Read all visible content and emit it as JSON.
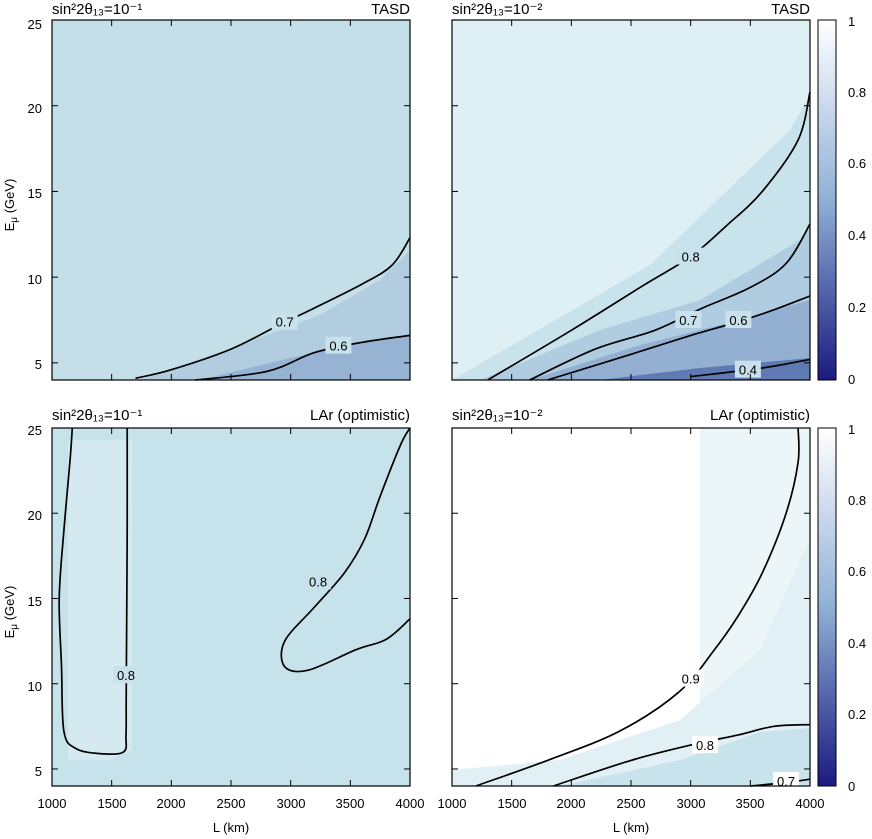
{
  "figure": {
    "x_label": "L (km)",
    "y_label_main": "E",
    "y_label_sub": "μ",
    "y_label_unit": " (GeV)",
    "x_ticks": [
      "1000",
      "1500",
      "2000",
      "2500",
      "3000",
      "3500",
      "4000"
    ],
    "y_ticks": [
      "5",
      "10",
      "15",
      "20",
      "25"
    ],
    "colorbar_ticks": [
      "0",
      "0.2",
      "0.4",
      "0.6",
      "0.8",
      "1"
    ],
    "colors": {
      "low": "#1a1a80",
      "mid": "#8fb0d6",
      "high": "#ffffff",
      "base_tasd": "#c4dfe8"
    }
  },
  "chart_data": [
    {
      "type": "heatmap",
      "panel": "top-left",
      "title_left": "sin²2θ₁₃=10⁻¹",
      "title_right": "TASD",
      "xlim": [
        1000,
        4000
      ],
      "ylim": [
        4,
        25
      ],
      "colorbar_range": [
        0,
        1
      ],
      "contours": [
        {
          "level": "0.7",
          "points": [
            [
              1700,
              4.1
            ],
            [
              2000,
              4.6
            ],
            [
              2500,
              5.8
            ],
            [
              2900,
              7.2
            ],
            [
              3200,
              8.2
            ],
            [
              3600,
              9.6
            ],
            [
              3850,
              10.7
            ],
            [
              4000,
              12.3
            ]
          ],
          "label_at": [
            2950,
            7.4
          ]
        },
        {
          "level": "0.6",
          "points": [
            [
              2200,
              4.0
            ],
            [
              2800,
              4.5
            ],
            [
              3200,
              5.6
            ],
            [
              3600,
              6.2
            ],
            [
              4000,
              6.6
            ]
          ],
          "label_at": [
            3400,
            6.0
          ]
        }
      ]
    },
    {
      "type": "heatmap",
      "panel": "top-right",
      "title_left": "sin²2θ₁₃=10⁻²",
      "title_right": "TASD",
      "xlim": [
        1000,
        4000
      ],
      "ylim": [
        4,
        25
      ],
      "colorbar_range": [
        0,
        1
      ],
      "contours": [
        {
          "level": "0.8",
          "points": [
            [
              1300,
              4.0
            ],
            [
              2000,
              6.9
            ],
            [
              2600,
              9.5
            ],
            [
              3000,
              11.2
            ],
            [
              3300,
              13.0
            ],
            [
              3600,
              15.0
            ],
            [
              3900,
              18.0
            ],
            [
              4000,
              20.8
            ]
          ],
          "label_at": [
            3000,
            11.2
          ]
        },
        {
          "level": "0.7",
          "points": [
            [
              1650,
              4.0
            ],
            [
              2200,
              5.8
            ],
            [
              2700,
              6.9
            ],
            [
              3100,
              8.2
            ],
            [
              3500,
              9.4
            ],
            [
              3800,
              10.8
            ],
            [
              4000,
              13.1
            ]
          ],
          "label_at": [
            2980,
            7.5
          ]
        },
        {
          "level": "0.6",
          "points": [
            [
              1800,
              4.0
            ],
            [
              2500,
              5.5
            ],
            [
              3000,
              6.6
            ],
            [
              3400,
              7.4
            ],
            [
              3700,
              8.1
            ],
            [
              4000,
              8.9
            ]
          ],
          "label_at": [
            3400,
            7.5
          ]
        },
        {
          "level": "0.4",
          "points": [
            [
              3000,
              4.2
            ],
            [
              3600,
              4.7
            ],
            [
              4000,
              5.2
            ]
          ],
          "label_at": [
            3480,
            4.6
          ]
        }
      ]
    },
    {
      "type": "heatmap",
      "panel": "bottom-left",
      "title_left": "sin²2θ₁₃=10⁻¹",
      "title_right": "LAr (optimistic)",
      "xlim": [
        1000,
        4000
      ],
      "ylim": [
        4,
        25
      ],
      "colorbar_range": [
        0,
        1
      ],
      "contours": [
        {
          "level": "0.8",
          "points": [
            [
              1630,
              25
            ],
            [
              1630,
              19
            ],
            [
              1625,
              13
            ],
            [
              1622,
              9
            ],
            [
              1620,
              7
            ],
            [
              1600,
              6.0
            ],
            [
              1400,
              5.9
            ],
            [
              1200,
              6.2
            ],
            [
              1100,
              7.2
            ],
            [
              1080,
              11
            ],
            [
              1060,
              15
            ],
            [
              1100,
              19
            ],
            [
              1150,
              23
            ],
            [
              1170,
              25
            ]
          ],
          "label_at": [
            1620,
            10.5
          ]
        },
        {
          "level": "0.8",
          "points": [
            [
              4000,
              25
            ],
            [
              3920,
              24
            ],
            [
              3750,
              21
            ],
            [
              3620,
              18.5
            ],
            [
              3450,
              16.5
            ],
            [
              3200,
              14.5
            ],
            [
              2950,
              12.5
            ],
            [
              2950,
              11
            ],
            [
              3150,
              10.8
            ],
            [
              3550,
              12.0
            ],
            [
              3800,
              12.6
            ],
            [
              4000,
              13.8
            ]
          ],
          "label_at": [
            3230,
            16.0
          ]
        }
      ]
    },
    {
      "type": "heatmap",
      "panel": "bottom-right",
      "title_left": "sin²2θ₁₃=10⁻²",
      "title_right": "LAr (optimistic)",
      "xlim": [
        1000,
        4000
      ],
      "ylim": [
        4,
        25
      ],
      "colorbar_range": [
        0,
        1
      ],
      "contours": [
        {
          "level": "0.9",
          "points": [
            [
              1200,
              4.0
            ],
            [
              1800,
              5.5
            ],
            [
              2400,
              7.2
            ],
            [
              2900,
              9.5
            ],
            [
              3200,
              12.0
            ],
            [
              3400,
              14.0
            ],
            [
              3600,
              16.5
            ],
            [
              3800,
              20.0
            ],
            [
              3900,
              23
            ],
            [
              3900,
              25
            ]
          ],
          "label_at": [
            3000,
            10.3
          ]
        },
        {
          "level": "0.8",
          "points": [
            [
              1850,
              4.0
            ],
            [
              2500,
              5.5
            ],
            [
              3000,
              6.4
            ],
            [
              3400,
              7.0
            ],
            [
              3700,
              7.5
            ],
            [
              4000,
              7.6
            ]
          ],
          "label_at": [
            3120,
            6.4
          ]
        },
        {
          "level": "0.7",
          "points": [
            [
              3500,
              4.0
            ],
            [
              3800,
              4.2
            ],
            [
              4000,
              4.4
            ]
          ],
          "label_at": [
            3800,
            4.3
          ]
        }
      ]
    }
  ]
}
